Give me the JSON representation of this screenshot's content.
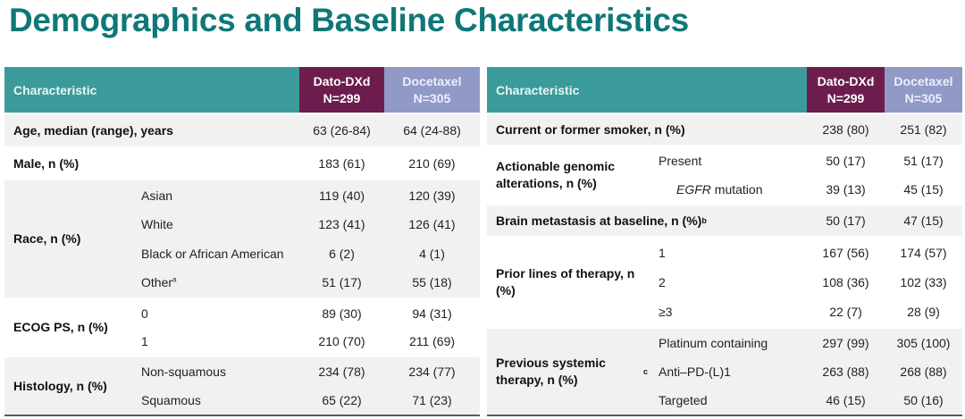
{
  "title": "Demographics and Baseline Characteristics",
  "colors": {
    "header_teal": "#3b9b9b",
    "dato": "#6d1d4d",
    "docetaxel": "#9199c6",
    "title": "#0f7777"
  },
  "header": {
    "characteristic": "Characteristic",
    "dato_name": "Dato-DXd",
    "dato_n": "N=299",
    "doce_name": "Docetaxel",
    "doce_n": "N=305"
  },
  "left_table": [
    {
      "label": "Age, median (range), years",
      "sup": "",
      "h": 38,
      "rows": [
        {
          "sub": "",
          "dato": "63 (26-84)",
          "doce": "64 (24-88)"
        }
      ]
    },
    {
      "label": "Male, n (%)",
      "sup": "",
      "h": 36,
      "rows": [
        {
          "sub": "",
          "dato": "183 (61)",
          "doce": "210 (69)"
        }
      ]
    },
    {
      "label": "Race, n (%)",
      "sup": "",
      "h": 133,
      "rows": [
        {
          "sub": "Asian",
          "dato": "119 (40)",
          "doce": "120 (39)"
        },
        {
          "sub": "White",
          "dato": "123 (41)",
          "doce": "126 (41)"
        },
        {
          "sub": "Black or African American",
          "dato": "6 (2)",
          "doce": "4 (1)"
        },
        {
          "sub": "Other",
          "sub_sup": "a",
          "dato": "51 (17)",
          "doce": "55 (18)"
        }
      ]
    },
    {
      "label": "ECOG PS, n (%)",
      "sup": "",
      "h": 65,
      "rows": [
        {
          "sub": "0",
          "dato": "89 (30)",
          "doce": "94 (31)"
        },
        {
          "sub": "1",
          "dato": "210 (70)",
          "doce": "211 (69)"
        }
      ]
    },
    {
      "label": "Histology, n (%)",
      "sup": "",
      "h": 66,
      "rows": [
        {
          "sub": "Non-squamous",
          "dato": "234 (78)",
          "doce": "234 (77)"
        },
        {
          "sub": "Squamous",
          "dato": "65 (22)",
          "doce": "71 (23)"
        }
      ]
    }
  ],
  "right_table": [
    {
      "label": "Current or former smoker, n (%)",
      "sup": "",
      "h": 36,
      "rows": [
        {
          "sub": "",
          "dato": "238 (80)",
          "doce": "251 (82)"
        }
      ]
    },
    {
      "label": "Actionable genomic alterations, n (%)",
      "sup": "",
      "h": 66,
      "rows": [
        {
          "sub": "Present",
          "dato": "50 (17)",
          "doce": "51 (17)"
        },
        {
          "sub_em": "EGFR",
          "sub": " mutation",
          "indent": true,
          "dato": "39 (13)",
          "doce": "45 (15)"
        }
      ]
    },
    {
      "label": "Brain metastasis at baseline, n (%)",
      "sup": "b",
      "h": 36,
      "rows": [
        {
          "sub": "",
          "dato": "50 (17)",
          "doce": "47 (15)"
        }
      ]
    },
    {
      "label": "Prior lines of therapy, n (%)",
      "sup": "",
      "h": 102,
      "rows": [
        {
          "sub": "1",
          "dato": "167 (56)",
          "doce": "174 (57)"
        },
        {
          "sub": "2",
          "dato": "108 (36)",
          "doce": "102 (33)"
        },
        {
          "sub": "≥3",
          "dato": "22 (7)",
          "doce": "28 (9)"
        }
      ]
    },
    {
      "label": "Previous systemic therapy, n (%)",
      "sup": "c",
      "h": 98,
      "rows": [
        {
          "sub": "Platinum containing",
          "dato": "297 (99)",
          "doce": "305 (100)"
        },
        {
          "sub": "Anti–PD-(L)1",
          "dato": "263 (88)",
          "doce": "268 (88)"
        },
        {
          "sub": "Targeted",
          "dato": "46 (15)",
          "doce": "50 (16)"
        }
      ]
    }
  ]
}
